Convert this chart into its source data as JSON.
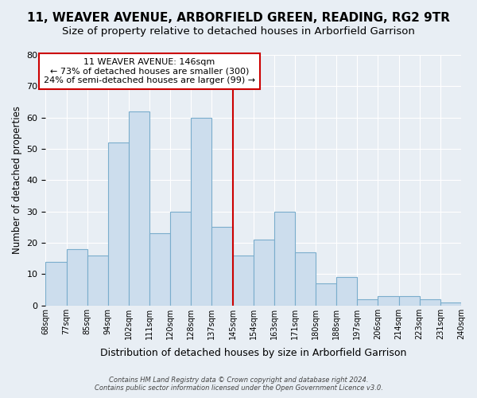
{
  "title": "11, WEAVER AVENUE, ARBORFIELD GREEN, READING, RG2 9TR",
  "subtitle": "Size of property relative to detached houses in Arborfield Garrison",
  "xlabel": "Distribution of detached houses by size in Arborfield Garrison",
  "ylabel": "Number of detached properties",
  "bin_edges": [
    "68sqm",
    "77sqm",
    "85sqm",
    "94sqm",
    "102sqm",
    "111sqm",
    "120sqm",
    "128sqm",
    "137sqm",
    "145sqm",
    "154sqm",
    "163sqm",
    "171sqm",
    "180sqm",
    "188sqm",
    "197sqm",
    "206sqm",
    "214sqm",
    "223sqm",
    "231sqm",
    "240sqm"
  ],
  "values": [
    14,
    18,
    16,
    52,
    62,
    23,
    30,
    60,
    25,
    16,
    21,
    30,
    17,
    7,
    9,
    2,
    3,
    3,
    2,
    1
  ],
  "bar_color": "#ccdded",
  "bar_edge_color": "#7aadcc",
  "annotation_title": "11 WEAVER AVENUE: 146sqm",
  "annotation_line1": "← 73% of detached houses are smaller (300)",
  "annotation_line2": "24% of semi-detached houses are larger (99) →",
  "vline_color": "#cc0000",
  "annotation_box_edge_color": "#cc0000",
  "ylim": [
    0,
    80
  ],
  "yticks": [
    0,
    10,
    20,
    30,
    40,
    50,
    60,
    70,
    80
  ],
  "footer1": "Contains HM Land Registry data © Crown copyright and database right 2024.",
  "footer2": "Contains public sector information licensed under the Open Government Licence v3.0.",
  "background_color": "#e8eef4",
  "plot_bg_color": "#e8eef4",
  "grid_color": "#ffffff",
  "title_fontsize": 11,
  "subtitle_fontsize": 9.5
}
